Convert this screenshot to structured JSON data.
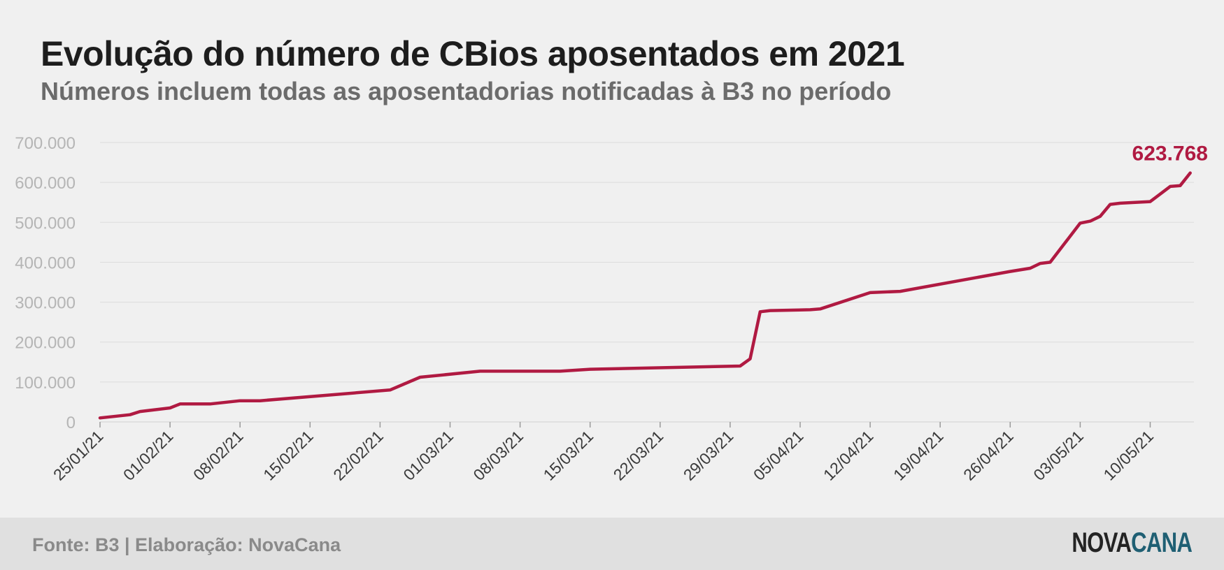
{
  "title": "Evolução do número de CBios aposentados em 2021",
  "subtitle": "Números incluem todas as aposentadorias notificadas à B3 no período",
  "footer": {
    "source": "Fonte: B3 | Elaboração: NovaCana",
    "brand_part1": "NOVA",
    "brand_part2": "CANA"
  },
  "colors": {
    "line": "#b01a42",
    "title": "#1d1d1d",
    "subtitle": "#6b6b6b",
    "axis_text": "#b5b5b5",
    "brand_dark": "#232323",
    "brand_accent": "#1f5f73"
  },
  "chart_data": {
    "type": "line",
    "title": "Evolução do número de CBios aposentados em 2021",
    "subtitle": "Números incluem todas as aposentadorias notificadas à B3 no período",
    "xlabel": "",
    "ylabel": "",
    "ylim": [
      0,
      700000
    ],
    "yticks": [
      0,
      100000,
      200000,
      300000,
      400000,
      500000,
      600000,
      700000
    ],
    "ytick_labels": [
      "0",
      "100.000",
      "200.000",
      "300.000",
      "400.000",
      "500.000",
      "600.000",
      "700.000"
    ],
    "xtick_labels": [
      "25/01/21",
      "01/02/21",
      "08/02/21",
      "15/02/21",
      "22/02/21",
      "01/03/21",
      "08/03/21",
      "15/03/21",
      "22/03/21",
      "29/03/21",
      "05/04/21",
      "12/04/21",
      "19/04/21",
      "26/04/21",
      "03/05/21",
      "10/05/21"
    ],
    "grid": true,
    "annotation": {
      "text": "623.768",
      "date": "2021-05-14",
      "value": 623768
    },
    "series": [
      {
        "x": [
          "2021-01-25",
          "2021-01-28",
          "2021-01-29",
          "2021-02-01",
          "2021-02-02",
          "2021-02-05",
          "2021-02-08",
          "2021-02-09",
          "2021-02-10",
          "2021-02-23",
          "2021-02-26",
          "2021-03-04",
          "2021-03-12",
          "2021-03-15",
          "2021-03-30",
          "2021-03-31",
          "2021-04-01",
          "2021-04-02",
          "2021-04-06",
          "2021-04-07",
          "2021-04-12",
          "2021-04-15",
          "2021-04-26",
          "2021-04-28",
          "2021-04-29",
          "2021-04-30",
          "2021-05-03",
          "2021-05-04",
          "2021-05-05",
          "2021-05-06",
          "2021-05-07",
          "2021-05-10",
          "2021-05-12",
          "2021-05-13",
          "2021-05-14"
        ],
        "values": [
          10000,
          18000,
          26000,
          35000,
          45000,
          45000,
          53000,
          53000,
          53000,
          80000,
          112000,
          127000,
          127000,
          132000,
          140000,
          158000,
          276000,
          279000,
          281000,
          283000,
          324000,
          327000,
          377000,
          385000,
          397000,
          400000,
          498000,
          503000,
          515000,
          545000,
          548000,
          552000,
          590000,
          592000,
          623768
        ]
      }
    ]
  }
}
